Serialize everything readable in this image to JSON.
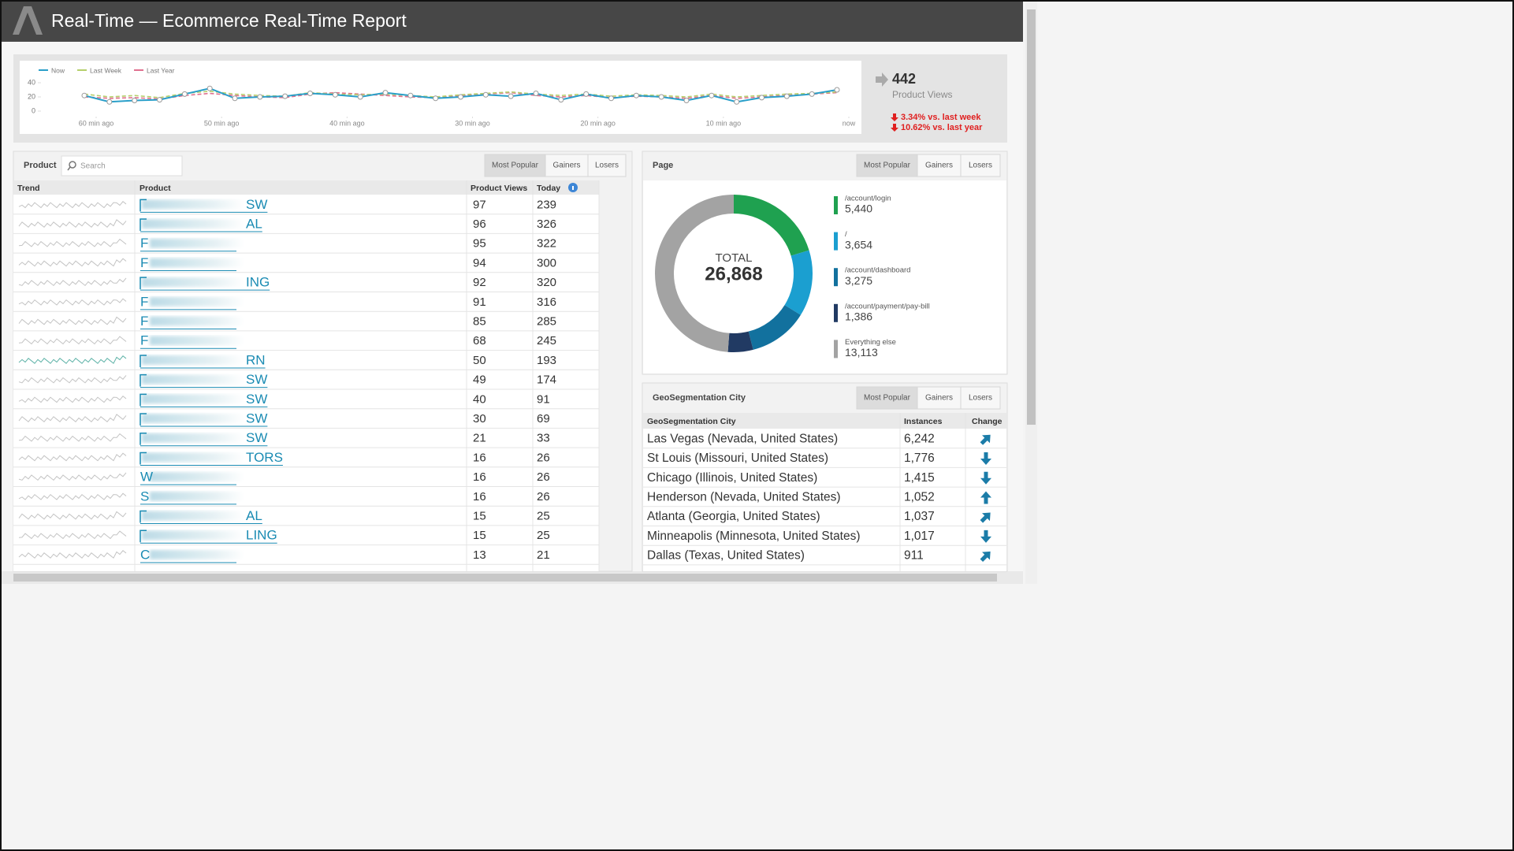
{
  "header": {
    "title": "Real-Time — Ecommerce Real-Time Report"
  },
  "chart_data": {
    "type": "line",
    "series": [
      {
        "name": "Now",
        "color": "#2a9fc9",
        "dash": false,
        "values": [
          22,
          13,
          15,
          16,
          24,
          32,
          18,
          20,
          21,
          25,
          23,
          20,
          26,
          22,
          18,
          20,
          23,
          21,
          25,
          16,
          24,
          18,
          22,
          20,
          15,
          22,
          13,
          19,
          21,
          24,
          30
        ]
      },
      {
        "name": "Last Week",
        "color": "#b5cf6b",
        "dash": true,
        "values": [
          24,
          20,
          22,
          19,
          25,
          28,
          24,
          22,
          21,
          26,
          24,
          23,
          24,
          22,
          20,
          23,
          25,
          27,
          24,
          22,
          24,
          21,
          23,
          22,
          20,
          24,
          20,
          22,
          24,
          25,
          27
        ]
      },
      {
        "name": "Last Year",
        "color": "#e0708f",
        "dash": true,
        "values": [
          20,
          18,
          19,
          17,
          22,
          25,
          22,
          20,
          19,
          24,
          26,
          24,
          22,
          20,
          19,
          22,
          24,
          26,
          22,
          20,
          22,
          19,
          21,
          20,
          18,
          22,
          18,
          20,
          22,
          24,
          26
        ]
      }
    ],
    "ylim": [
      0,
      50
    ],
    "yticks": [
      0,
      20,
      40
    ],
    "xlim": [
      0,
      30
    ],
    "xticks": [
      {
        "value": 0,
        "label": "60 min ago"
      },
      {
        "value": 5,
        "label": "50 min ago"
      },
      {
        "value": 10,
        "label": "40 min ago"
      },
      {
        "value": 15,
        "label": "30 min ago"
      },
      {
        "value": 20,
        "label": "20 min ago"
      },
      {
        "value": 25,
        "label": "10 min ago"
      },
      {
        "value": 30,
        "label": "now"
      }
    ]
  },
  "summary": {
    "value": 442,
    "label": "Product Views",
    "changes": [
      "3.34% vs. last week",
      "10.62% vs. last year"
    ]
  },
  "products": {
    "label": "Product",
    "search_placeholder": "Search",
    "tabs": [
      "Most Popular",
      "Gainers",
      "Losers"
    ],
    "columns": [
      "Trend",
      "Product",
      "Product Views",
      "Today"
    ],
    "rows": [
      {
        "name": "SW",
        "views": 97,
        "today": 239
      },
      {
        "name": "AL",
        "views": 96,
        "today": 326
      },
      {
        "name": "F",
        "views": 95,
        "today": 322
      },
      {
        "name": "F",
        "views": 94,
        "today": 300
      },
      {
        "name": "ING",
        "views": 92,
        "today": 320
      },
      {
        "name": "F",
        "views": 91,
        "today": 316
      },
      {
        "name": "F",
        "views": 85,
        "today": 285
      },
      {
        "name": "F",
        "views": 68,
        "today": 245
      },
      {
        "name": "RN",
        "views": 50,
        "today": 193
      },
      {
        "name": "SW",
        "views": 49,
        "today": 174
      },
      {
        "name": "SW",
        "views": 40,
        "today": 91
      },
      {
        "name": "SW",
        "views": 30,
        "today": 69
      },
      {
        "name": "SW",
        "views": 21,
        "today": 33
      },
      {
        "name": "TORS",
        "views": 16,
        "today": 26
      },
      {
        "name": "W",
        "views": 16,
        "today": 26
      },
      {
        "name": "S",
        "views": 16,
        "today": 26
      },
      {
        "name": "AL",
        "views": 15,
        "today": 25
      },
      {
        "name": "LING",
        "views": 15,
        "today": 25
      },
      {
        "name": "C",
        "views": 13,
        "today": 21
      }
    ]
  },
  "page_panel": {
    "title": "Page",
    "tabs": [
      "Most Popular",
      "Gainers",
      "Losers"
    ],
    "total_label": "TOTAL",
    "total": "26,868",
    "segments": [
      {
        "label": "/account/login",
        "value": 5440,
        "value_label": "5,440",
        "color": "#1fa150"
      },
      {
        "label": "/",
        "value": 3654,
        "value_label": "3,654",
        "color": "#1b9fd0"
      },
      {
        "label": "/account/dashboard",
        "value": 3275,
        "value_label": "3,275",
        "color": "#12719e"
      },
      {
        "label": "/account/payment/pay-bill",
        "value": 1386,
        "value_label": "1,386",
        "color": "#213a63"
      },
      {
        "label": "Everything else",
        "value": 13113,
        "value_label": "13,113",
        "color": "#a3a3a3"
      }
    ]
  },
  "geo_panel": {
    "title": "GeoSegmentation City",
    "tabs": [
      "Most Popular",
      "Gainers",
      "Losers"
    ],
    "columns": [
      "GeoSegmentation City",
      "Instances",
      "Change"
    ],
    "rows": [
      {
        "city": "Las Vegas (Nevada, United States)",
        "instances": "6,242",
        "change": "up-right"
      },
      {
        "city": "St Louis (Missouri, United States)",
        "instances": "1,776",
        "change": "down"
      },
      {
        "city": "Chicago (Illinois, United States)",
        "instances": "1,415",
        "change": "down"
      },
      {
        "city": "Henderson (Nevada, United States)",
        "instances": "1,052",
        "change": "up"
      },
      {
        "city": "Atlanta (Georgia, United States)",
        "instances": "1,037",
        "change": "up-right"
      },
      {
        "city": "Minneapolis (Minnesota, United States)",
        "instances": "1,017",
        "change": "down"
      },
      {
        "city": "Dallas (Texas, United States)",
        "instances": "911",
        "change": "up-right"
      }
    ]
  }
}
